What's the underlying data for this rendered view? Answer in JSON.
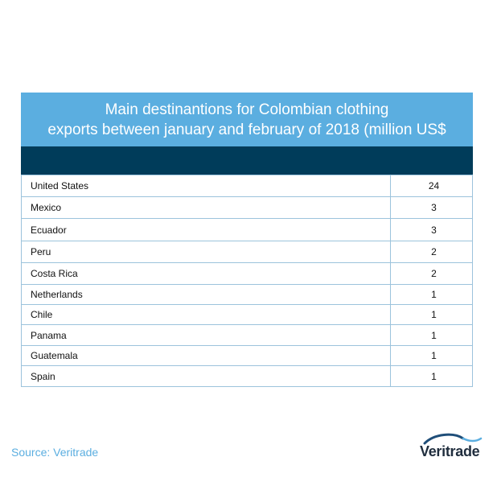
{
  "title_lines": [
    "Main destinantions for Colombian clothing",
    "exports between january and february of 2018 (million US$"
  ],
  "source": "Source: Veritrade",
  "logo_text": "Veritrade",
  "colors": {
    "title_bar": "#5baee0",
    "header_bar": "#003c5a",
    "grid": "#9cc3dc",
    "source_text": "#5baee0"
  },
  "chart_data": {
    "type": "table",
    "title": "Main destinantions for Colombian clothing exports between january and february of 2018 (million US$",
    "rows": [
      {
        "country": "United States",
        "value": 24
      },
      {
        "country": "Mexico",
        "value": 3
      },
      {
        "country": "Ecuador",
        "value": 3
      },
      {
        "country": "Peru",
        "value": 2
      },
      {
        "country": "Costa Rica",
        "value": 2
      },
      {
        "country": "Netherlands",
        "value": 1
      },
      {
        "country": "Chile",
        "value": 1
      },
      {
        "country": "Panama",
        "value": 1
      },
      {
        "country": "Guatemala",
        "value": 1
      },
      {
        "country": "Spain",
        "value": 1
      }
    ]
  }
}
